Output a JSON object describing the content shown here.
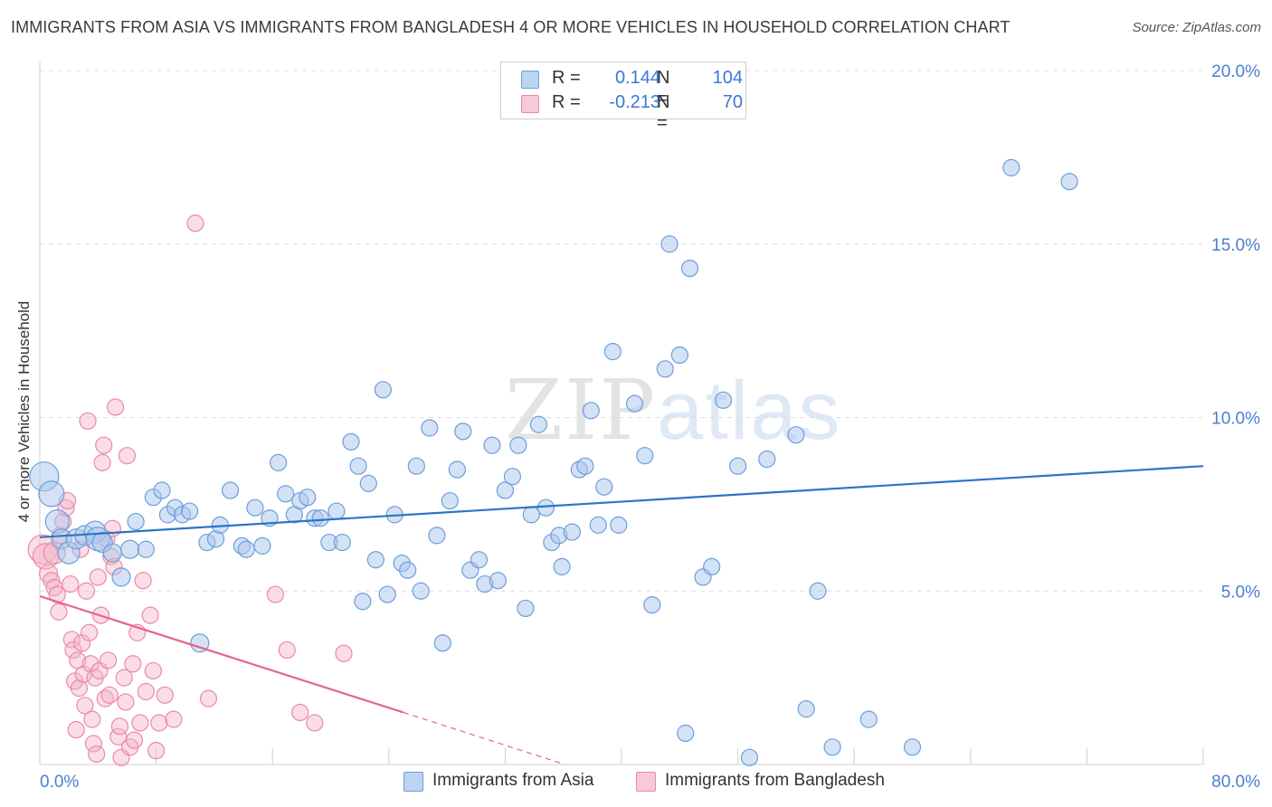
{
  "header": {
    "title": "IMMIGRANTS FROM ASIA VS IMMIGRANTS FROM BANGLADESH 4 OR MORE VEHICLES IN HOUSEHOLD CORRELATION CHART",
    "source": "Source: ZipAtlas.com"
  },
  "watermark": {
    "zip": "ZIP",
    "atlas": "atlas"
  },
  "legend": {
    "series1": {
      "r_label": "R =",
      "r_value": "0.144",
      "n_label": "N =",
      "n_value": "104",
      "color": "#a9c6ec"
    },
    "series2": {
      "r_label": "R =",
      "r_value": "-0.213",
      "n_label": "N =",
      "n_value": "70",
      "color": "#f5b4c8"
    }
  },
  "bottom_legend": {
    "series1": "Immigrants from Asia",
    "series2": "Immigrants from Bangladesh"
  },
  "colors": {
    "asia_fill": "#a9c6ec",
    "asia_stroke": "#6c9edb",
    "asia_line": "#2f73c9",
    "bangladesh_fill": "#f5b4c8",
    "bangladesh_stroke": "#e98aa8",
    "bangladesh_line": "#e4648f",
    "tick_text": "#4a7fd0",
    "grid": "#dcdcdc"
  },
  "chart_data": {
    "type": "scatter",
    "title": "IMMIGRANTS FROM ASIA VS IMMIGRANTS FROM BANGLADESH 4 OR MORE VEHICLES IN HOUSEHOLD CORRELATION CHART",
    "xlabel": "",
    "ylabel": "4 or more Vehicles in Household",
    "xlim": [
      0,
      80
    ],
    "ylim": [
      0,
      20
    ],
    "x_tick_labels": [
      "0.0%",
      "80.0%"
    ],
    "y_ticks": [
      5,
      10,
      15,
      20
    ],
    "y_tick_labels": [
      "5.0%",
      "10.0%",
      "15.0%",
      "20.0%"
    ],
    "grid": true,
    "legend_position": "top-center",
    "series": [
      {
        "name": "Immigrants from Asia",
        "R": 0.144,
        "N": 104,
        "trend": {
          "x": [
            0,
            80
          ],
          "y": [
            6.55,
            8.6
          ]
        },
        "points": [
          [
            0.3,
            8.3,
            16
          ],
          [
            0.8,
            7.8,
            14
          ],
          [
            1.2,
            7.0,
            13
          ],
          [
            1.5,
            6.5,
            11
          ],
          [
            2.0,
            6.1,
            12
          ],
          [
            2.5,
            6.5,
            11
          ],
          [
            3.1,
            6.6,
            11
          ],
          [
            3.8,
            6.7,
            12
          ],
          [
            4.0,
            6.5,
            13
          ],
          [
            4.3,
            6.4,
            11
          ],
          [
            5.0,
            6.1,
            10
          ],
          [
            5.6,
            5.4,
            10
          ],
          [
            6.2,
            6.2,
            10
          ],
          [
            6.6,
            7.0,
            9
          ],
          [
            7.3,
            6.2,
            9
          ],
          [
            7.8,
            7.7,
            9
          ],
          [
            8.4,
            7.9,
            9
          ],
          [
            8.8,
            7.2,
            9
          ],
          [
            9.3,
            7.4,
            9
          ],
          [
            9.8,
            7.2,
            9
          ],
          [
            10.3,
            7.3,
            9
          ],
          [
            11.0,
            3.5,
            10
          ],
          [
            11.5,
            6.4,
            9
          ],
          [
            12.1,
            6.5,
            9
          ],
          [
            12.4,
            6.9,
            9
          ],
          [
            13.1,
            7.9,
            9
          ],
          [
            13.9,
            6.3,
            9
          ],
          [
            14.2,
            6.2,
            9
          ],
          [
            14.8,
            7.4,
            9
          ],
          [
            15.3,
            6.3,
            9
          ],
          [
            15.8,
            7.1,
            9
          ],
          [
            16.4,
            8.7,
            9
          ],
          [
            16.9,
            7.8,
            9
          ],
          [
            17.5,
            7.2,
            9
          ],
          [
            17.9,
            7.6,
            9
          ],
          [
            18.4,
            7.7,
            9
          ],
          [
            18.9,
            7.1,
            9
          ],
          [
            19.3,
            7.1,
            9
          ],
          [
            19.9,
            6.4,
            9
          ],
          [
            20.4,
            7.3,
            9
          ],
          [
            20.8,
            6.4,
            9
          ],
          [
            21.4,
            9.3,
            9
          ],
          [
            21.9,
            8.6,
            9
          ],
          [
            22.2,
            4.7,
            9
          ],
          [
            22.6,
            8.1,
            9
          ],
          [
            23.1,
            5.9,
            9
          ],
          [
            23.6,
            10.8,
            9
          ],
          [
            23.9,
            4.9,
            9
          ],
          [
            24.4,
            7.2,
            9
          ],
          [
            24.9,
            5.8,
            9
          ],
          [
            25.3,
            5.6,
            9
          ],
          [
            25.9,
            8.6,
            9
          ],
          [
            26.2,
            5.0,
            9
          ],
          [
            26.8,
            9.7,
            9
          ],
          [
            27.3,
            6.6,
            9
          ],
          [
            27.7,
            3.5,
            9
          ],
          [
            28.2,
            7.6,
            9
          ],
          [
            28.7,
            8.5,
            9
          ],
          [
            29.1,
            9.6,
            9
          ],
          [
            29.6,
            5.6,
            9
          ],
          [
            30.2,
            5.9,
            9
          ],
          [
            30.6,
            5.2,
            9
          ],
          [
            31.1,
            9.2,
            9
          ],
          [
            31.5,
            5.3,
            9
          ],
          [
            32.0,
            7.9,
            9
          ],
          [
            32.5,
            8.3,
            9
          ],
          [
            32.9,
            9.2,
            9
          ],
          [
            33.4,
            4.5,
            9
          ],
          [
            33.8,
            7.2,
            9
          ],
          [
            34.3,
            9.8,
            9
          ],
          [
            34.8,
            7.4,
            9
          ],
          [
            35.2,
            6.4,
            9
          ],
          [
            35.7,
            6.6,
            9
          ],
          [
            35.9,
            5.7,
            9
          ],
          [
            36.6,
            6.7,
            9
          ],
          [
            37.1,
            8.5,
            9
          ],
          [
            37.5,
            8.6,
            9
          ],
          [
            37.9,
            10.2,
            9
          ],
          [
            38.4,
            6.9,
            9
          ],
          [
            38.8,
            8.0,
            9
          ],
          [
            39.4,
            11.9,
            9
          ],
          [
            39.8,
            6.9,
            9
          ],
          [
            40.9,
            10.4,
            9
          ],
          [
            41.6,
            8.9,
            9
          ],
          [
            42.1,
            4.6,
            9
          ],
          [
            43.0,
            11.4,
            9
          ],
          [
            43.3,
            15.0,
            9
          ],
          [
            44.0,
            11.8,
            9
          ],
          [
            44.4,
            0.9,
            9
          ],
          [
            44.7,
            14.3,
            9
          ],
          [
            45.6,
            5.4,
            9
          ],
          [
            46.2,
            5.7,
            9
          ],
          [
            47.0,
            10.5,
            9
          ],
          [
            48.0,
            8.6,
            9
          ],
          [
            48.8,
            0.2,
            9
          ],
          [
            50.0,
            8.8,
            9
          ],
          [
            52.0,
            9.5,
            9
          ],
          [
            52.7,
            1.6,
            9
          ],
          [
            53.5,
            5.0,
            9
          ],
          [
            54.5,
            0.5,
            9
          ],
          [
            57.0,
            1.3,
            9
          ],
          [
            60.0,
            0.5,
            9
          ],
          [
            66.8,
            17.2,
            9
          ],
          [
            70.8,
            16.8,
            9
          ]
        ]
      },
      {
        "name": "Immigrants from Bangladesh",
        "R": -0.213,
        "N": 70,
        "trend": {
          "x": [
            0,
            25
          ],
          "y": [
            4.85,
            1.5
          ],
          "dashed_extension": {
            "x": [
              25,
              45
            ],
            "y": [
              1.5,
              -1.2
            ]
          }
        },
        "points": [
          [
            0.2,
            6.2,
            16
          ],
          [
            0.4,
            6.0,
            14
          ],
          [
            0.6,
            5.5,
            10
          ],
          [
            0.8,
            5.3,
            9
          ],
          [
            1.0,
            5.1,
            9
          ],
          [
            1.2,
            4.9,
            9
          ],
          [
            1.3,
            4.4,
            9
          ],
          [
            1.4,
            6.6,
            9
          ],
          [
            1.6,
            7.0,
            9
          ],
          [
            1.8,
            7.4,
            9
          ],
          [
            1.9,
            7.6,
            9
          ],
          [
            2.1,
            5.2,
            9
          ],
          [
            2.2,
            3.6,
            9
          ],
          [
            2.3,
            3.3,
            9
          ],
          [
            2.4,
            2.4,
            9
          ],
          [
            2.5,
            1.0,
            9
          ],
          [
            2.6,
            3.0,
            9
          ],
          [
            2.7,
            2.2,
            9
          ],
          [
            2.8,
            6.2,
            9
          ],
          [
            2.9,
            3.5,
            9
          ],
          [
            3.0,
            2.6,
            9
          ],
          [
            3.1,
            1.7,
            9
          ],
          [
            3.2,
            5.0,
            9
          ],
          [
            3.3,
            9.9,
            9
          ],
          [
            3.4,
            3.8,
            9
          ],
          [
            3.5,
            2.9,
            9
          ],
          [
            3.6,
            1.3,
            9
          ],
          [
            3.7,
            0.6,
            9
          ],
          [
            3.8,
            2.5,
            9
          ],
          [
            3.9,
            0.3,
            9
          ],
          [
            4.0,
            5.4,
            9
          ],
          [
            4.1,
            2.7,
            9
          ],
          [
            4.2,
            4.3,
            9
          ],
          [
            4.3,
            8.7,
            9
          ],
          [
            4.4,
            9.2,
            9
          ],
          [
            4.5,
            1.9,
            9
          ],
          [
            4.6,
            6.5,
            9
          ],
          [
            4.7,
            3.0,
            9
          ],
          [
            4.8,
            2.0,
            9
          ],
          [
            4.9,
            6.0,
            9
          ],
          [
            5.0,
            6.8,
            9
          ],
          [
            5.1,
            5.7,
            9
          ],
          [
            5.2,
            10.3,
            9
          ],
          [
            5.4,
            0.8,
            9
          ],
          [
            5.5,
            1.1,
            9
          ],
          [
            5.6,
            0.2,
            9
          ],
          [
            5.8,
            2.5,
            9
          ],
          [
            5.9,
            1.8,
            9
          ],
          [
            6.0,
            8.9,
            9
          ],
          [
            6.2,
            0.5,
            9
          ],
          [
            6.4,
            2.9,
            9
          ],
          [
            6.5,
            0.7,
            9
          ],
          [
            6.7,
            3.8,
            9
          ],
          [
            6.9,
            1.2,
            9
          ],
          [
            7.1,
            5.3,
            9
          ],
          [
            7.3,
            2.1,
            9
          ],
          [
            7.6,
            4.3,
            9
          ],
          [
            7.8,
            2.7,
            9
          ],
          [
            8.0,
            0.4,
            9
          ],
          [
            8.2,
            1.2,
            9
          ],
          [
            8.6,
            2.0,
            9
          ],
          [
            9.2,
            1.3,
            9
          ],
          [
            10.7,
            15.6,
            9
          ],
          [
            11.6,
            1.9,
            9
          ],
          [
            16.2,
            4.9,
            9
          ],
          [
            17.0,
            3.3,
            9
          ],
          [
            17.9,
            1.5,
            9
          ],
          [
            18.9,
            1.2,
            9
          ],
          [
            20.9,
            3.2,
            9
          ],
          [
            1.0,
            6.1,
            12
          ]
        ]
      }
    ]
  }
}
